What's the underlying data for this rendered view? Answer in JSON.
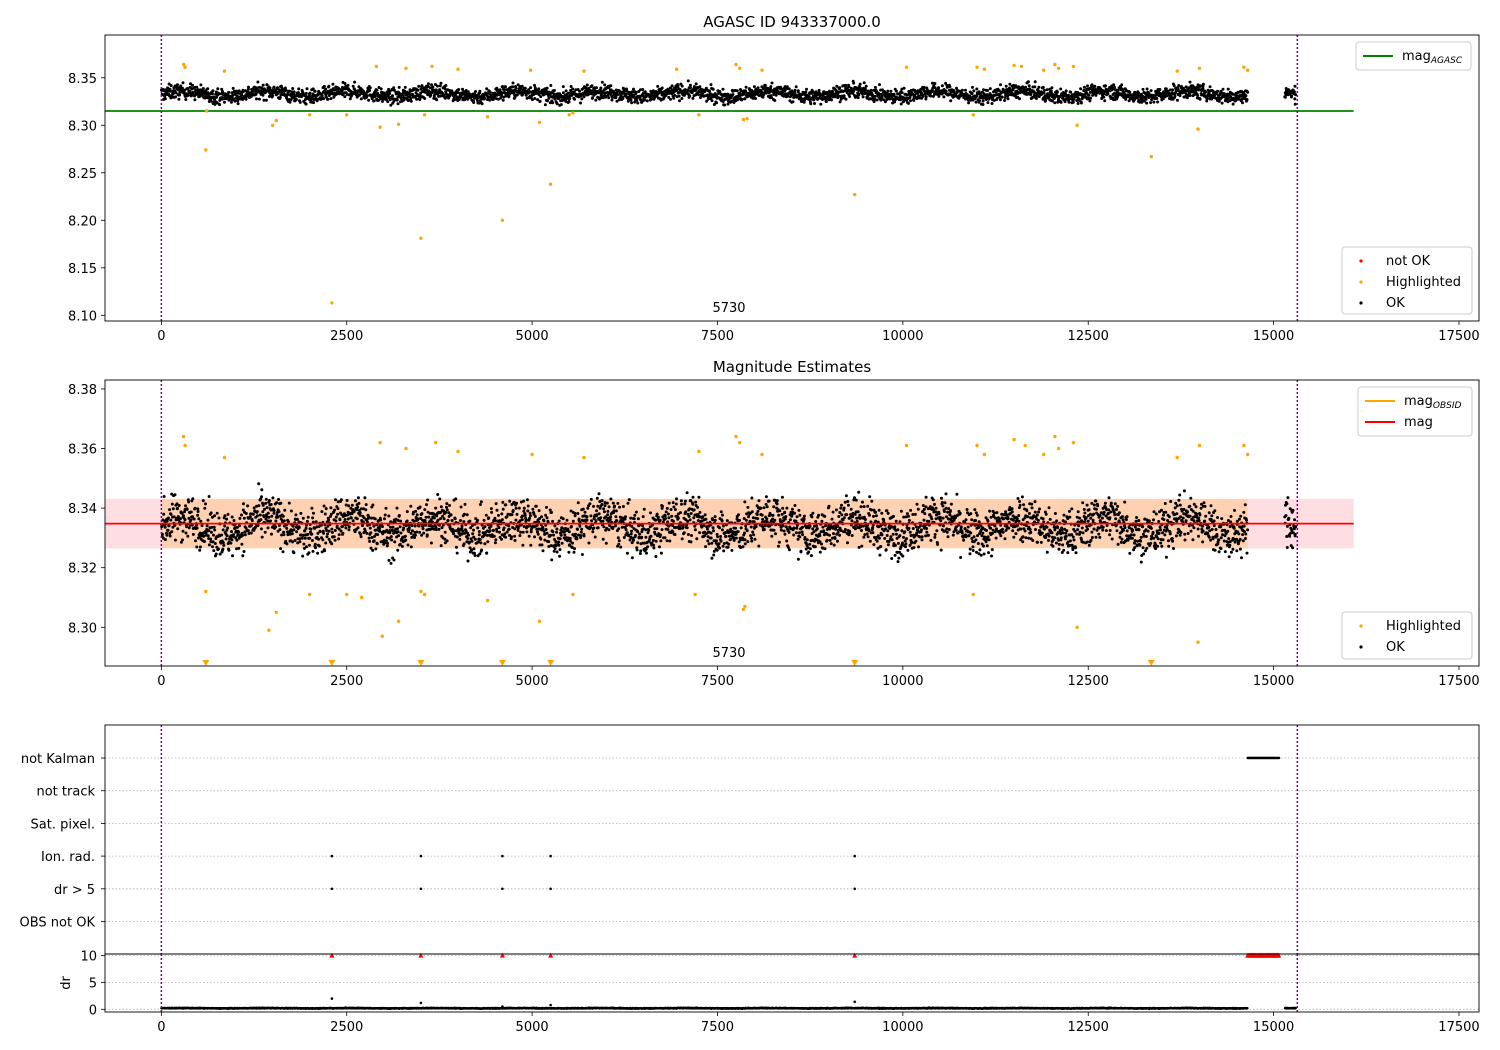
{
  "chart_data": [
    {
      "type": "scatter",
      "title": "AGASC ID 943337000.0",
      "annotation": "5730",
      "xlim": [
        -760,
        17770
      ],
      "ylim": [
        8.094,
        8.395
      ],
      "xticks": [
        0,
        2500,
        5000,
        7500,
        10000,
        12500,
        15000,
        17500
      ],
      "yticks": [
        8.1,
        8.15,
        8.2,
        8.25,
        8.3,
        8.35
      ],
      "vlines": [
        0,
        15320
      ],
      "grid": false,
      "legends": [
        {
          "placement": "upper right",
          "entries": [
            {
              "label": "mag",
              "sub": "AGASC",
              "color": "#008000",
              "kind": "line"
            }
          ]
        },
        {
          "placement": "lower right",
          "entries": [
            {
              "label": "not OK",
              "color": "#ff0000",
              "kind": "dot"
            },
            {
              "label": "Highlighted",
              "color": "#ffa500",
              "kind": "dot"
            },
            {
              "label": "OK",
              "color": "#000000",
              "kind": "dot"
            }
          ]
        }
      ],
      "series": [
        {
          "name": "mag_AGASC",
          "type": "hline",
          "y": 8.315,
          "xrange": [
            -760,
            16080
          ],
          "color": "#008000"
        },
        {
          "name": "OK",
          "type": "band_scatter",
          "x_segments": [
            [
              0,
              14650
            ],
            [
              15150,
              15300
            ]
          ],
          "center": 8.333,
          "spread": 0.012,
          "color": "#000000"
        },
        {
          "name": "Highlighted",
          "color": "#ffa500",
          "x": [
            300,
            320,
            600,
            610,
            850,
            1500,
            1550,
            2000,
            2300,
            2500,
            2900,
            2950,
            3200,
            3300,
            3500,
            3550,
            3650,
            4000,
            4400,
            4600,
            4980,
            5100,
            5250,
            5500,
            5550,
            5700,
            6950,
            7250,
            7750,
            7800,
            7850,
            7900,
            8100,
            9350,
            10050,
            10950,
            11000,
            11100,
            11500,
            11600,
            11900,
            12050,
            12100,
            12300,
            12350,
            13350,
            13700,
            13980,
            14000,
            14600,
            14650
          ],
          "y": [
            8.364,
            8.361,
            8.274,
            8.315,
            8.357,
            8.3,
            8.305,
            8.311,
            8.113,
            8.311,
            8.362,
            8.298,
            8.301,
            8.36,
            8.181,
            8.311,
            8.362,
            8.359,
            8.309,
            8.2,
            8.358,
            8.303,
            8.238,
            8.311,
            8.313,
            8.357,
            8.359,
            8.311,
            8.364,
            8.36,
            8.306,
            8.307,
            8.358,
            8.227,
            8.361,
            8.311,
            8.361,
            8.359,
            8.363,
            8.362,
            8.358,
            8.364,
            8.36,
            8.362,
            8.3,
            8.267,
            8.357,
            8.296,
            8.36,
            8.361,
            8.358
          ]
        }
      ]
    },
    {
      "type": "scatter",
      "title": "Magnitude Estimates",
      "annotation": "5730",
      "xlim": [
        -760,
        17770
      ],
      "ylim": [
        8.287,
        8.383
      ],
      "xticks": [
        0,
        2500,
        5000,
        7500,
        10000,
        12500,
        15000,
        17500
      ],
      "yticks": [
        8.3,
        8.32,
        8.34,
        8.36,
        8.38
      ],
      "vlines": [
        0,
        15320
      ],
      "grid": false,
      "legends": [
        {
          "placement": "upper right",
          "entries": [
            {
              "label": "mag",
              "sub": "OBSID",
              "color": "#ffa500",
              "kind": "line"
            },
            {
              "label": "mag",
              "sub": "",
              "color": "#ff0000",
              "kind": "line"
            }
          ]
        },
        {
          "placement": "lower right",
          "entries": [
            {
              "label": "Highlighted",
              "color": "#ffa500",
              "kind": "dot"
            },
            {
              "label": "OK",
              "color": "#000000",
              "kind": "dot"
            }
          ]
        }
      ],
      "series": [
        {
          "name": "mag",
          "type": "hline",
          "y": 8.3348,
          "xrange": [
            -760,
            16080
          ],
          "color": "#ff0000",
          "band": [
            8.3265,
            8.3431
          ],
          "band_color": "#ffb6c1"
        },
        {
          "name": "mag_OBSID",
          "type": "band",
          "band": [
            8.3265,
            8.3431
          ],
          "xrange": [
            0,
            14650
          ],
          "color": "#ffa500"
        },
        {
          "name": "OK",
          "type": "band_scatter",
          "x_segments": [
            [
              0,
              14650
            ],
            [
              15150,
              15300
            ]
          ],
          "center": 8.334,
          "spread": 0.012,
          "color": "#000000"
        },
        {
          "name": "Highlighted",
          "color": "#ffa500",
          "x": [
            300,
            320,
            600,
            850,
            1450,
            1550,
            2000,
            2500,
            2700,
            2950,
            2980,
            3200,
            3300,
            3500,
            3550,
            3700,
            4000,
            4400,
            5000,
            5100,
            5550,
            5700,
            7200,
            7250,
            7750,
            7800,
            7850,
            7870,
            8100,
            10050,
            10950,
            11000,
            11100,
            11500,
            11650,
            11900,
            12050,
            12100,
            12300,
            12350,
            13700,
            13980,
            14000,
            14600,
            14650
          ],
          "y": [
            8.364,
            8.361,
            8.312,
            8.357,
            8.299,
            8.305,
            8.311,
            8.311,
            8.31,
            8.362,
            8.297,
            8.302,
            8.36,
            8.312,
            8.311,
            8.362,
            8.359,
            8.309,
            8.358,
            8.302,
            8.311,
            8.357,
            8.311,
            8.359,
            8.364,
            8.362,
            8.306,
            8.307,
            8.358,
            8.361,
            8.311,
            8.361,
            8.358,
            8.363,
            8.361,
            8.358,
            8.364,
            8.36,
            8.362,
            8.3,
            8.357,
            8.295,
            8.361,
            8.361,
            8.358
          ]
        },
        {
          "name": "off-scale",
          "marker": "triangle-down",
          "color": "#ffa500",
          "x": [
            600,
            2300,
            3500,
            4600,
            5250,
            9350,
            13350
          ]
        }
      ]
    },
    {
      "type": "scatter",
      "title": "",
      "xlim": [
        -760,
        17770
      ],
      "xticks": [
        0,
        2500,
        5000,
        7500,
        10000,
        12500,
        15000,
        17500
      ],
      "vlines": [
        0,
        15320
      ],
      "grid": true,
      "category_axis": [
        "not Kalman",
        "not track",
        "Sat. pixel.",
        "Ion. rad.",
        "dr > 5",
        "OBS not OK"
      ],
      "flags": [
        {
          "category": "not Kalman",
          "x_range": [
            14650,
            15080
          ]
        },
        {
          "category": "Ion. rad.",
          "x": [
            2300,
            3500,
            4600,
            5250,
            9350
          ]
        },
        {
          "category": "dr > 5",
          "x": [
            2300,
            3500,
            4600,
            5250,
            9350
          ]
        }
      ]
    },
    {
      "type": "scatter",
      "title": "",
      "ylabel": "dr",
      "xlim": [
        -760,
        17770
      ],
      "ylim": [
        -0.5,
        10.3
      ],
      "xticks": [
        0,
        2500,
        5000,
        7500,
        10000,
        12500,
        15000,
        17500
      ],
      "yticks": [
        0,
        5,
        10
      ],
      "vlines": [
        0,
        15320
      ],
      "grid": true,
      "series": [
        {
          "name": "dr",
          "type": "band_scatter",
          "x_segments": [
            [
              0,
              14650
            ],
            [
              15150,
              15300
            ]
          ],
          "center": 0.2,
          "spread": 0.12,
          "color": "#000000"
        },
        {
          "name": "dr (clipped)",
          "marker": "triangle-up",
          "color": "#ff0000",
          "x": [
            2300,
            3500,
            4600,
            5250,
            9350
          ],
          "y": 10,
          "x_range": [
            14650,
            15080
          ]
        },
        {
          "name": "dr outliers",
          "color": "#000000",
          "x": [
            2300,
            3500,
            4600,
            5250,
            9350
          ],
          "y": [
            2.0,
            1.2,
            0.5,
            0.8,
            1.4
          ]
        }
      ]
    }
  ]
}
